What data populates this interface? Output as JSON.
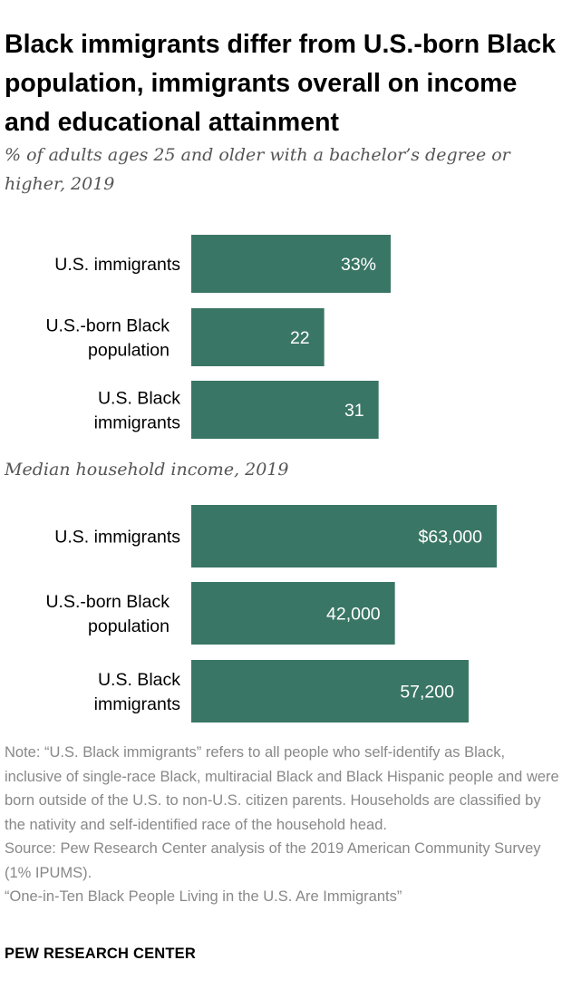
{
  "title": "Black immigrants differ from U.S.-born Black population, immigrants overall on income and educational attainment",
  "colors": {
    "bar": "#3a7665",
    "value_text": "#ffffff"
  },
  "chart_data": [
    {
      "type": "bar",
      "orientation": "horizontal",
      "subtitle": "% of adults ages 25 and older with a bachelor’s degree or higher, 2019",
      "categories": [
        "U.S. immigrants",
        "U.S.-born Black population",
        "U.S. Black immigrants"
      ],
      "category_lines": [
        [
          "U.S. immigrants"
        ],
        [
          "U.S.-born Black",
          "population"
        ],
        [
          "U.S. Black",
          "immigrants"
        ]
      ],
      "values": [
        33,
        22,
        31
      ],
      "value_labels": [
        "33%",
        "22",
        "31"
      ],
      "unit": "%",
      "grid": false,
      "legend": "none"
    },
    {
      "type": "bar",
      "orientation": "horizontal",
      "subtitle": "Median household income, 2019",
      "categories": [
        "U.S. immigrants",
        "U.S.-born Black population",
        "U.S. Black immigrants"
      ],
      "category_lines": [
        [
          "U.S. immigrants"
        ],
        [
          "U.S.-born Black",
          "population"
        ],
        [
          "U.S. Black",
          "immigrants"
        ]
      ],
      "values": [
        63000,
        42000,
        57200
      ],
      "value_labels": [
        "$63,000",
        "42,000",
        "57,200"
      ],
      "unit": "$",
      "grid": false,
      "legend": "none"
    }
  ],
  "note": {
    "lines": [
      "Note: “U.S. Black immigrants” refers to all people who self-identify as Black, inclusive of single-race Black, multiracial Black and Black Hispanic people and were born outside of the U.S. to non-U.S. citizen parents.  Households are classified by the nativity and self-identified race of the household head.",
      "Source: Pew Research Center analysis of the 2019 American Community Survey (1% IPUMS).",
      "“One-in-Ten Black People Living in the U.S. Are Immigrants”"
    ]
  },
  "footer": "PEW RESEARCH CENTER"
}
